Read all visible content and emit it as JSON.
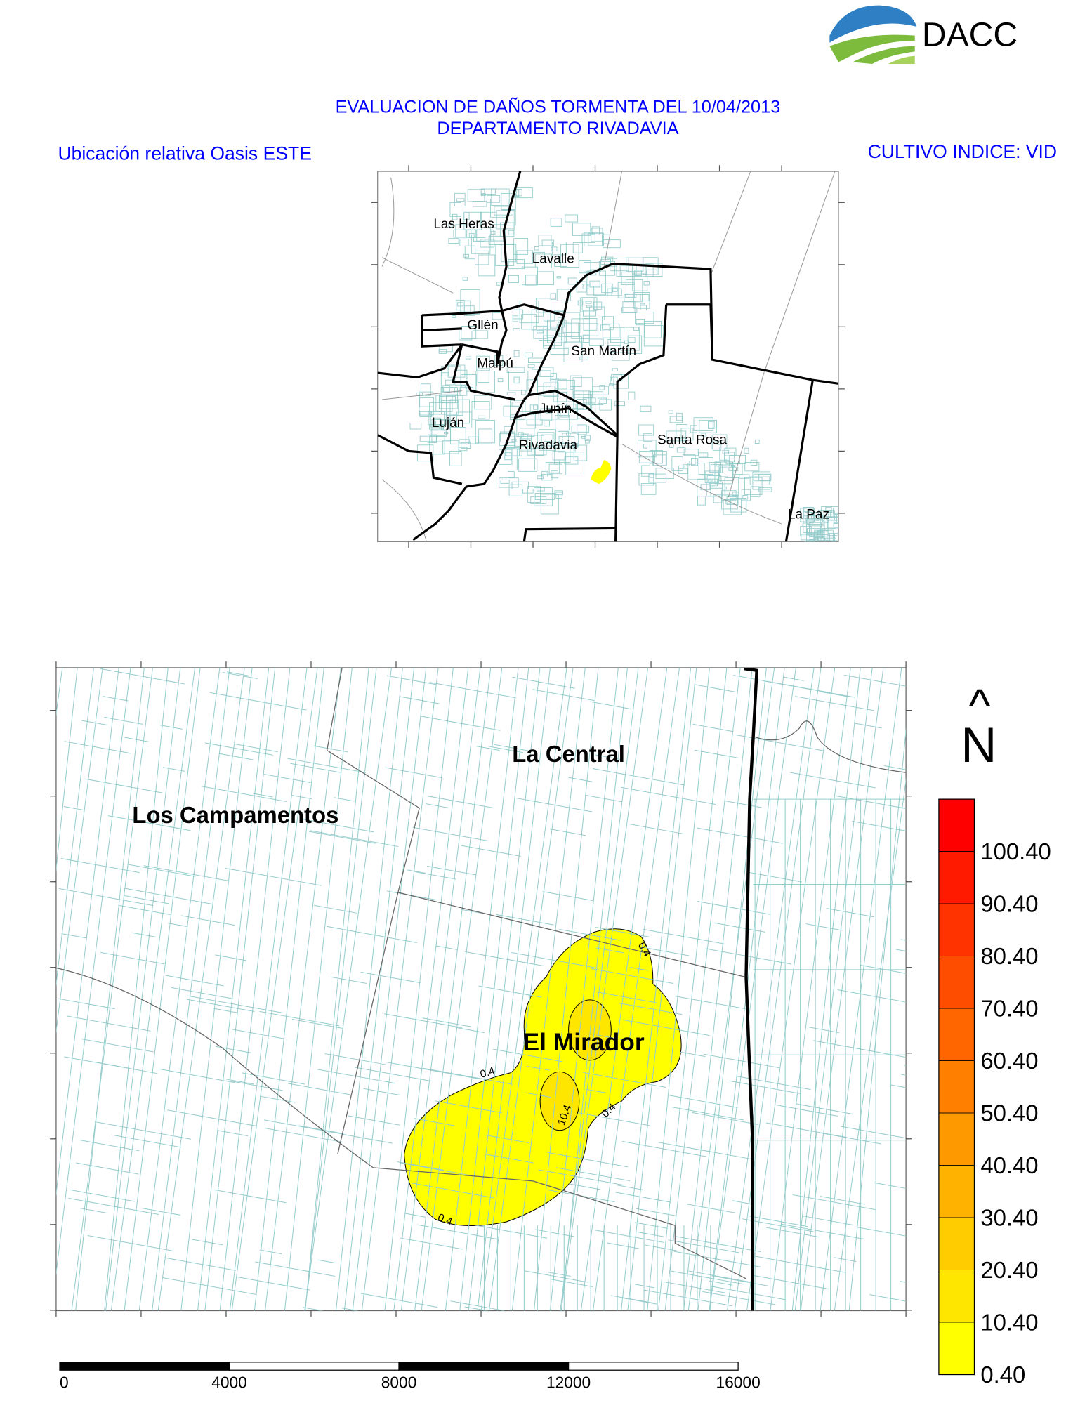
{
  "logo": {
    "text": "DACC",
    "colors": {
      "sky": "#2e7fc4",
      "field": "#7dbb3c",
      "text": "#333333"
    }
  },
  "header": {
    "title_line1": "EVALUACION DE DAÑOS TORMENTA DEL 10/04/2013",
    "title_line2": "DEPARTAMENTO RIVADAVIA",
    "left_caption": "Ubicación relativa Oasis ESTE",
    "right_caption": "CULTIVO INDICE: VID",
    "text_color": "#0000ff"
  },
  "inset_map": {
    "departments": [
      "Las Heras",
      "Lavalle",
      "Gllén",
      "Maipú",
      "San Martín",
      "Junín",
      "Luján",
      "Rivadavia",
      "Santa Rosa",
      "La Paz"
    ],
    "parcel_color": "#96cccc",
    "boundary_color": "#000000",
    "highlight_color": "#ffff00"
  },
  "main_map": {
    "places": [
      "La Central",
      "Los Campamentos",
      "El Mirador"
    ],
    "contour_labels": [
      "0.4",
      "0.4",
      "0.4",
      "0.4",
      "10.4"
    ],
    "north": {
      "arrow": "^",
      "letter": "N"
    },
    "parcel_color": "#96cccc"
  },
  "legend": {
    "labels": [
      "100.40",
      "90.40",
      "80.40",
      "70.40",
      "60.40",
      "50.40",
      "40.40",
      "30.40",
      "20.40",
      "10.40",
      "0.40"
    ],
    "colors": [
      "#ff0000",
      "#ff1a00",
      "#ff3300",
      "#ff4d00",
      "#ff6600",
      "#ff8000",
      "#ff9900",
      "#ffb300",
      "#ffcc00",
      "#ffe600",
      "#ffff00"
    ]
  },
  "scale_bar": {
    "ticks": [
      "0",
      "4000",
      "8000",
      "12000",
      "16000"
    ]
  }
}
